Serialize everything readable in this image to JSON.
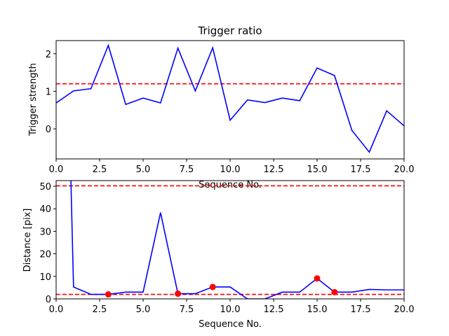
{
  "chart_data": [
    {
      "type": "line",
      "title": "Trigger ratio",
      "xlabel": "Sequence No.",
      "ylabel": "Trigger strength",
      "xlim": [
        0,
        20
      ],
      "ylim": [
        -0.8,
        2.35
      ],
      "xticks": [
        0,
        2.5,
        5,
        7.5,
        10,
        12.5,
        15,
        17.5,
        20
      ],
      "xtick_labels": [
        "0.0",
        "2.5",
        "5.0",
        "7.5",
        "10.0",
        "12.5",
        "15.0",
        "17.5",
        "20.0"
      ],
      "yticks": [
        0,
        1,
        2
      ],
      "ytick_labels": [
        "0",
        "1",
        "2"
      ],
      "grid": false,
      "series": [
        {
          "color": "#0000ff",
          "x": [
            0,
            1,
            2,
            3,
            4,
            5,
            6,
            7,
            8,
            9,
            10,
            11,
            12,
            13,
            14,
            15,
            16,
            17,
            18,
            19,
            20
          ],
          "values": [
            0.69,
            1.01,
            1.07,
            2.22,
            0.65,
            0.82,
            0.69,
            2.15,
            1.01,
            2.16,
            0.23,
            0.77,
            0.7,
            0.82,
            0.75,
            1.62,
            1.42,
            -0.04,
            -0.62,
            0.48,
            0.08
          ]
        }
      ],
      "hlines": [
        {
          "y": 1.2,
          "color": "#ff0000",
          "style": "dashed"
        }
      ]
    },
    {
      "type": "line",
      "xlabel": "Sequence No.",
      "ylabel": "Distance [pix]",
      "xlim": [
        0,
        20
      ],
      "ylim": [
        0,
        52.5
      ],
      "xticks": [
        0,
        2.5,
        5,
        7.5,
        10,
        12.5,
        15,
        17.5,
        20
      ],
      "xtick_labels": [
        "0.0",
        "2.5",
        "5.0",
        "7.5",
        "10.0",
        "12.5",
        "15.0",
        "17.5",
        "20.0"
      ],
      "yticks": [
        0,
        10,
        20,
        30,
        40,
        50
      ],
      "ytick_labels": [
        "0",
        "10",
        "20",
        "30",
        "40",
        "50"
      ],
      "grid": false,
      "series": [
        {
          "color": "#0000ff",
          "x": [
            0.85,
            1,
            2,
            3,
            4,
            5,
            6,
            7,
            8,
            9,
            10,
            11,
            12,
            13,
            14,
            15,
            16,
            17,
            18,
            19,
            20
          ],
          "values": [
            52.5,
            5.3,
            2.0,
            2.0,
            3.0,
            3.0,
            38.3,
            2.3,
            2.3,
            5.3,
            5.3,
            0.0,
            0.0,
            3.0,
            3.0,
            9.1,
            3.0,
            3.0,
            4.2,
            4.0,
            4.0
          ]
        }
      ],
      "markers": {
        "color": "#ff0000",
        "x": [
          3,
          7,
          9,
          15,
          16
        ],
        "values": [
          2.0,
          2.3,
          5.3,
          9.1,
          3.0
        ]
      },
      "hlines": [
        {
          "y": 50.2,
          "color": "#ff0000",
          "style": "dashed"
        },
        {
          "y": 2.0,
          "color": "#ff0000",
          "style": "dashed"
        }
      ]
    }
  ]
}
